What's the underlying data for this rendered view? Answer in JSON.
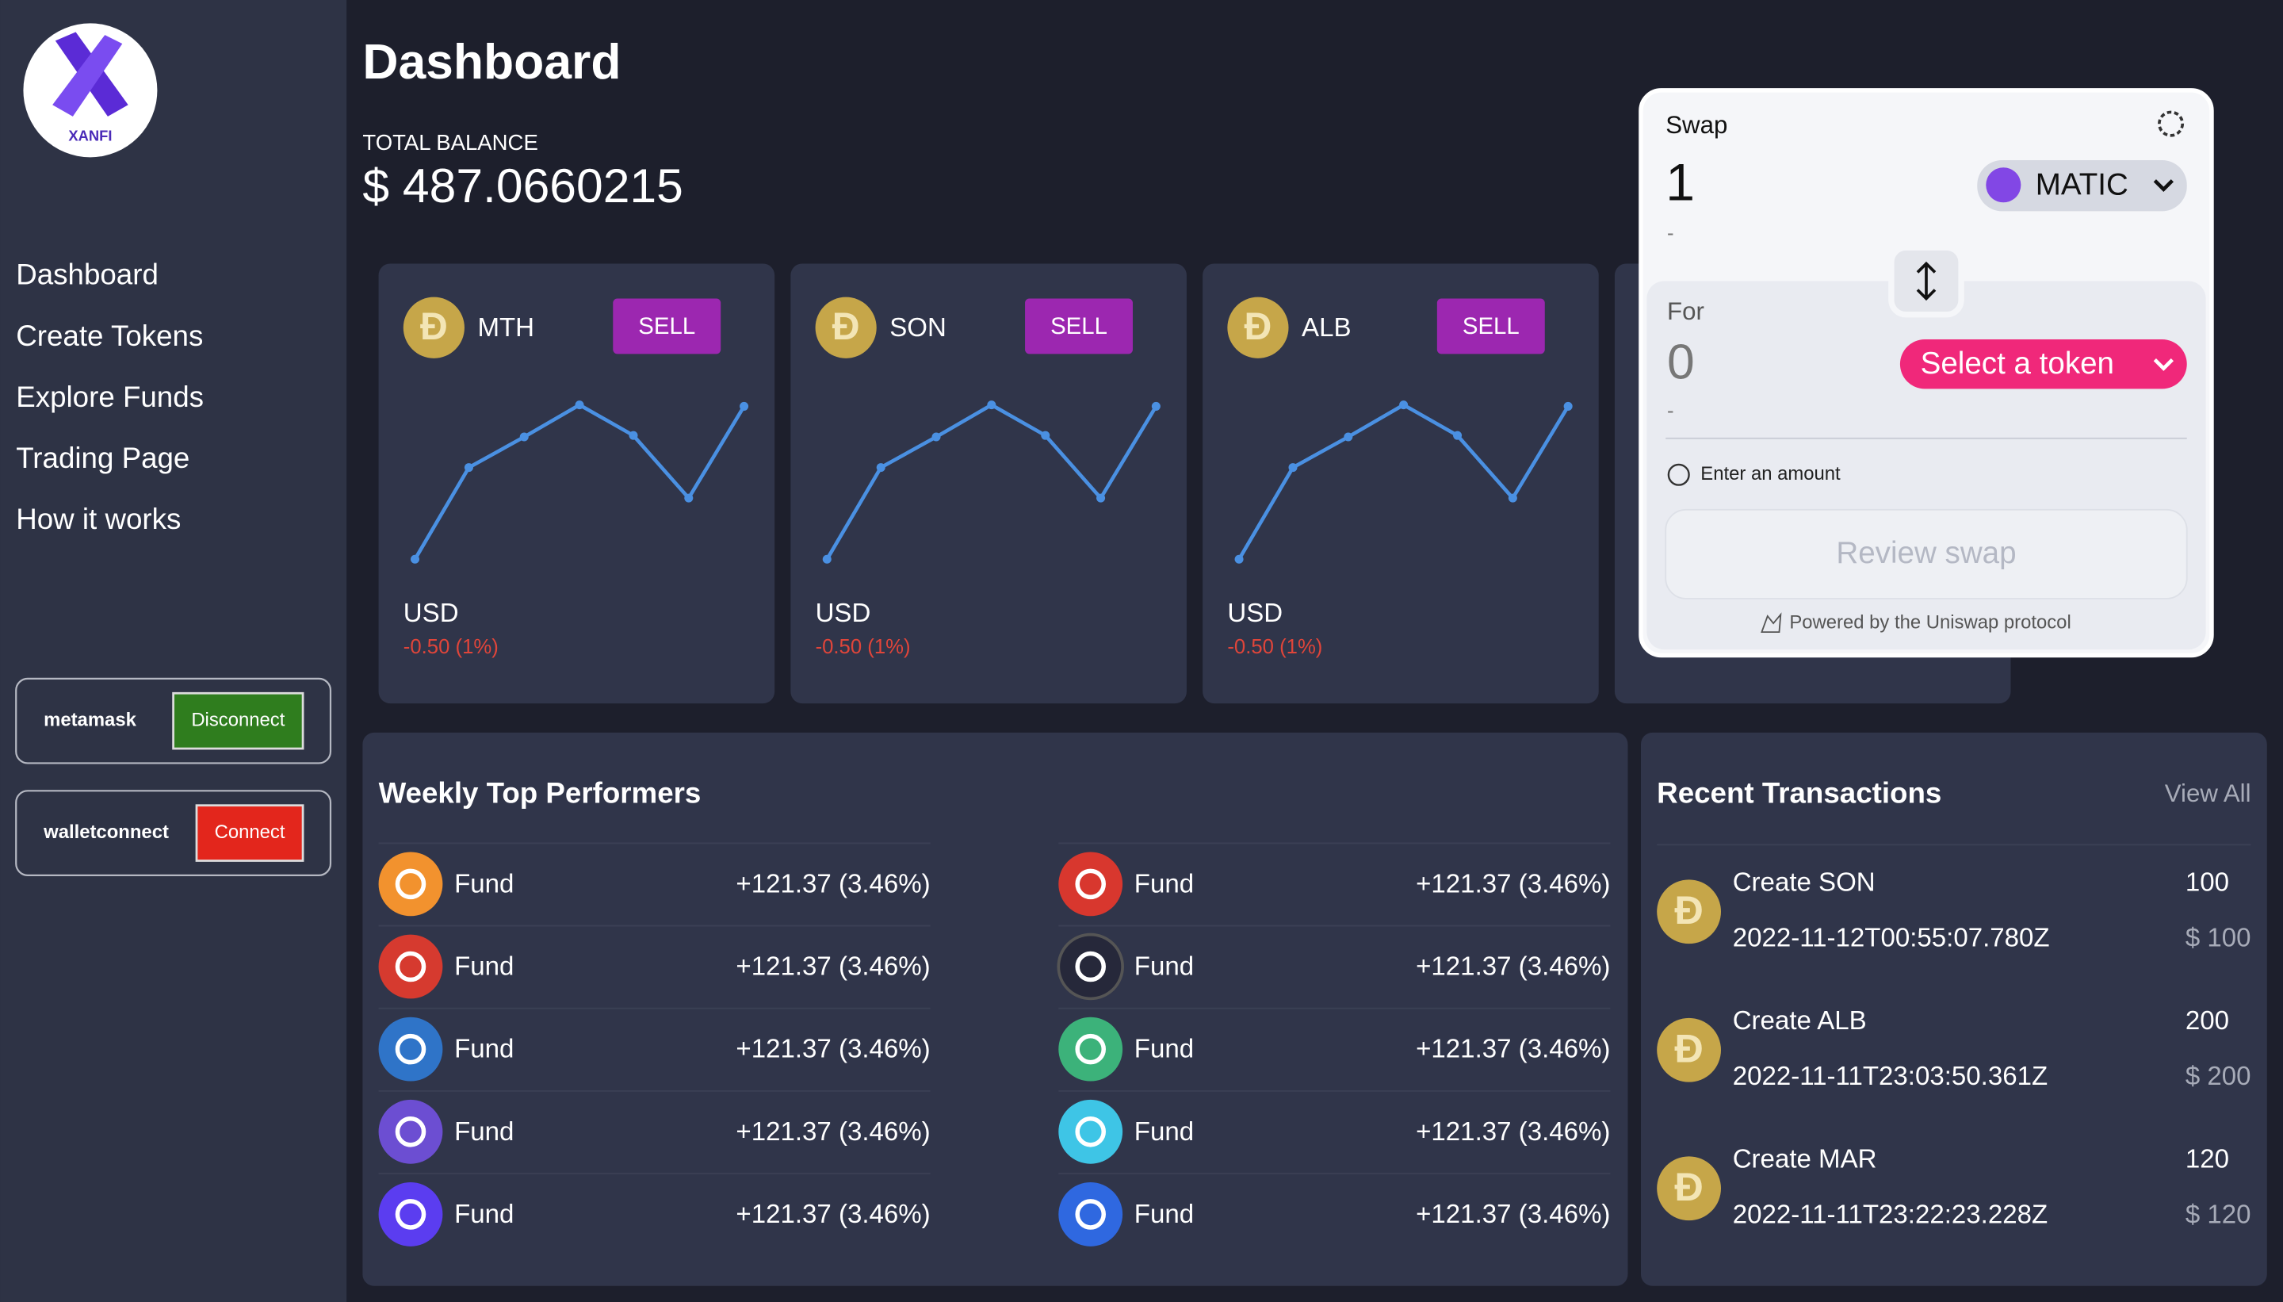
{
  "sidebar": {
    "logo": "XANFI",
    "nav": [
      "Dashboard",
      "Create Tokens",
      "Explore Funds",
      "Trading Page",
      "How it works"
    ],
    "wallets": [
      {
        "name": "metamask",
        "button": "Disconnect"
      },
      {
        "name": "walletconnect",
        "button": "Connect"
      }
    ]
  },
  "header": {
    "title": "Dashboard",
    "balance_label": "TOTAL BALANCE",
    "balance": "$ 487.0660215"
  },
  "coin_symbol": "Đ",
  "tokens": [
    {
      "symbol": "MTH",
      "action": "SELL",
      "currency": "USD",
      "change": "-0.50 (1%)"
    },
    {
      "symbol": "SON",
      "action": "SELL",
      "currency": "USD",
      "change": "-0.50 (1%)"
    },
    {
      "symbol": "ALB",
      "action": "SELL",
      "currency": "USD",
      "change": "-0.50 (1%)"
    }
  ],
  "swap": {
    "title": "Swap",
    "amount_in": "1",
    "token_in": "MATIC",
    "dash_in": "-",
    "for_label": "For",
    "amount_out": "0",
    "select": "Select a token",
    "dash_out": "-",
    "hint": "Enter an amount",
    "button": "Review swap",
    "footer": "Powered by the Uniswap protocol"
  },
  "performers": {
    "title": "Weekly Top Performers",
    "rows": [
      {
        "name": "Fund",
        "change": "+121.37 (3.46%)"
      },
      {
        "name": "Fund",
        "change": "+121.37 (3.46%)"
      },
      {
        "name": "Fund",
        "change": "+121.37 (3.46%)"
      },
      {
        "name": "Fund",
        "change": "+121.37 (3.46%)"
      },
      {
        "name": "Fund",
        "change": "+121.37 (3.46%)"
      },
      {
        "name": "Fund",
        "change": "+121.37 (3.46%)"
      },
      {
        "name": "Fund",
        "change": "+121.37 (3.46%)"
      },
      {
        "name": "Fund",
        "change": "+121.37 (3.46%)"
      },
      {
        "name": "Fund",
        "change": "+121.37 (3.46%)"
      },
      {
        "name": "Fund",
        "change": "+121.37 (3.46%)"
      }
    ]
  },
  "transactions": {
    "title": "Recent Transactions",
    "view_all": "View All",
    "items": [
      {
        "label": "Create SON",
        "amount": "100",
        "date": "2022-11-12T00:55:07.780Z",
        "usd": "$ 100"
      },
      {
        "label": "Create ALB",
        "amount": "200",
        "date": "2022-11-11T23:03:50.361Z",
        "usd": "$ 200"
      },
      {
        "label": "Create MAR",
        "amount": "120",
        "date": "2022-11-11T23:22:23.228Z",
        "usd": "$ 120"
      }
    ]
  }
}
